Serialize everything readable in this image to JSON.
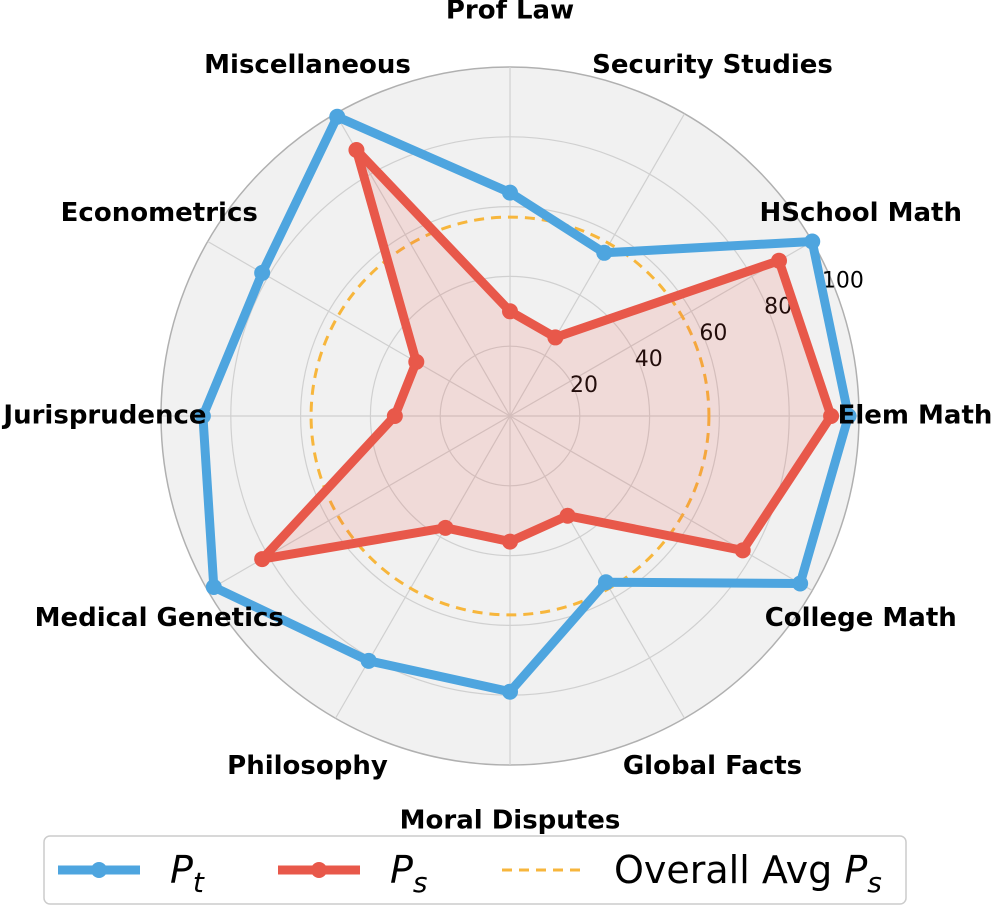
{
  "chart_data": {
    "type": "radar",
    "categories": [
      "Elem Math",
      "HSchool Math",
      "Security Studies",
      "Prof Law",
      "Miscellaneous",
      "Econometrics",
      "Jurisprudence",
      "Medical Genetics",
      "Philosophy",
      "Moral Disputes",
      "Global Facts",
      "College Math"
    ],
    "rlim": [
      0,
      100
    ],
    "r_ticks": [
      "20",
      "40",
      "60",
      "80",
      "100"
    ],
    "grid": true,
    "legend_placement": "bottom",
    "series": [
      {
        "name": "P",
        "subscript": "t",
        "color": "#4EA5DF",
        "values": [
          97,
          100,
          54,
          64,
          99,
          82,
          88,
          98,
          81,
          79,
          55,
          96
        ]
      },
      {
        "name": "P",
        "subscript": "s",
        "color": "#E8584A",
        "values": [
          92,
          89,
          26,
          30,
          88,
          31,
          33,
          82,
          37,
          36,
          33,
          77
        ]
      }
    ],
    "reference_lines": [
      {
        "prefix": "Overall Avg ",
        "name": "P",
        "subscript": "s",
        "value": 57,
        "color": "#F7B63C",
        "style": "dashed"
      }
    ]
  }
}
